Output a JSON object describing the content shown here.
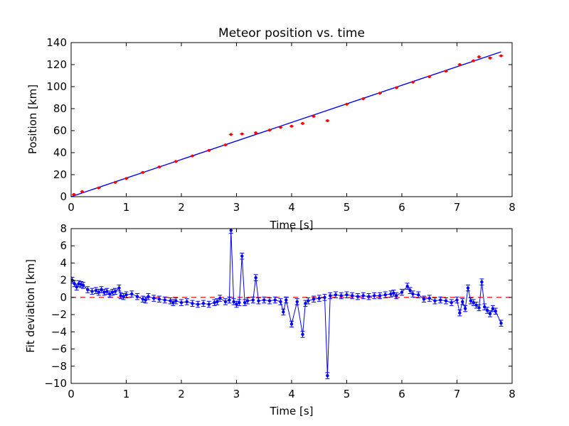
{
  "colors": {
    "fit_line": "#0000ff",
    "data_points": "#ff0000",
    "deviation": "#0000ff",
    "zero_line": "#ff0000",
    "axes": "#000000"
  },
  "chart_data": [
    {
      "type": "scatter",
      "title": "Meteor position vs. time",
      "xlabel": "Time [s]",
      "ylabel": "Position [km]",
      "xlim": [
        0,
        8
      ],
      "ylim": [
        0,
        140
      ],
      "xticks": [
        "0",
        "1",
        "2",
        "3",
        "4",
        "5",
        "6",
        "7",
        "8"
      ],
      "yticks": [
        "0",
        "20",
        "40",
        "60",
        "80",
        "100",
        "120",
        "140"
      ],
      "grid": false,
      "series": [
        {
          "role": "fit",
          "style": "line",
          "color": "#0000ff",
          "x": [
            0,
            7.8
          ],
          "y": [
            0,
            131.6
          ]
        },
        {
          "role": "measurements",
          "style": "points-with-errorbars",
          "color": "#ff0000",
          "x": [
            0.05,
            0.2,
            0.5,
            0.8,
            1.0,
            1.3,
            1.6,
            1.9,
            2.2,
            2.5,
            2.8,
            2.9,
            3.1,
            3.35,
            3.6,
            3.8,
            4.0,
            4.2,
            4.4,
            4.65,
            5.0,
            5.3,
            5.6,
            5.9,
            6.2,
            6.5,
            6.8,
            7.05,
            7.3,
            7.4,
            7.6,
            7.8
          ],
          "y": [
            2,
            4.5,
            8,
            13,
            16.5,
            22,
            27,
            32,
            37,
            42,
            47,
            56.5,
            57,
            58,
            60.5,
            63,
            64,
            66.5,
            73,
            69,
            84,
            89,
            94,
            99,
            104,
            109,
            114,
            120,
            123.5,
            127,
            126,
            128
          ]
        }
      ]
    },
    {
      "type": "line",
      "title": "",
      "xlabel": "Time [s]",
      "ylabel": "Fit deviation [km]",
      "xlim": [
        0,
        8
      ],
      "ylim": [
        -10,
        8
      ],
      "xticks": [
        "0",
        "1",
        "2",
        "3",
        "4",
        "5",
        "6",
        "7",
        "8"
      ],
      "yticks": [
        "8",
        "6",
        "4",
        "2",
        "0",
        "−2",
        "−4",
        "−6",
        "−8",
        "−10"
      ],
      "grid": false,
      "zero_line": true,
      "series": [
        {
          "role": "deviation",
          "style": "line-markers-errorbars",
          "color": "#0000ff",
          "x": [
            0.02,
            0.06,
            0.1,
            0.14,
            0.18,
            0.22,
            0.3,
            0.38,
            0.45,
            0.5,
            0.55,
            0.6,
            0.65,
            0.7,
            0.75,
            0.8,
            0.87,
            0.9,
            0.95,
            1.0,
            1.1,
            1.2,
            1.3,
            1.35,
            1.4,
            1.5,
            1.6,
            1.7,
            1.8,
            1.85,
            1.9,
            2.0,
            2.1,
            2.2,
            2.3,
            2.4,
            2.5,
            2.6,
            2.65,
            2.7,
            2.8,
            2.87,
            2.9,
            2.95,
            3.0,
            3.05,
            3.1,
            3.15,
            3.2,
            3.3,
            3.35,
            3.4,
            3.5,
            3.6,
            3.7,
            3.8,
            3.85,
            3.9,
            4.0,
            4.1,
            4.2,
            4.25,
            4.3,
            4.4,
            4.5,
            4.6,
            4.65,
            4.7,
            4.8,
            4.9,
            5.0,
            5.1,
            5.2,
            5.3,
            5.4,
            5.5,
            5.6,
            5.7,
            5.8,
            5.85,
            5.9,
            6.0,
            6.1,
            6.15,
            6.2,
            6.3,
            6.4,
            6.5,
            6.6,
            6.7,
            6.8,
            6.9,
            7.0,
            7.05,
            7.1,
            7.15,
            7.2,
            7.25,
            7.3,
            7.35,
            7.4,
            7.45,
            7.5,
            7.55,
            7.6,
            7.65,
            7.7,
            7.8
          ],
          "y": [
            2.0,
            1.6,
            1.2,
            1.6,
            1.5,
            1.4,
            0.9,
            0.7,
            0.8,
            0.6,
            0.9,
            0.6,
            0.7,
            0.4,
            0.6,
            0.7,
            1.1,
            0.2,
            0.1,
            0.3,
            0.4,
            0.1,
            -0.2,
            -0.3,
            0.1,
            -0.1,
            -0.2,
            -0.3,
            -0.4,
            -0.6,
            -0.4,
            -0.6,
            -0.5,
            -0.7,
            -0.8,
            -0.7,
            -0.8,
            -0.6,
            -0.5,
            -0.1,
            -0.5,
            -0.3,
            7.8,
            -0.5,
            -0.8,
            -0.6,
            4.8,
            -0.6,
            -0.4,
            -0.3,
            2.3,
            -0.4,
            -0.3,
            -0.4,
            -0.3,
            -0.5,
            -1.7,
            -0.3,
            -3.1,
            -0.5,
            -4.3,
            -0.7,
            -0.4,
            -0.2,
            -0.1,
            0.0,
            -9.1,
            0.2,
            0.3,
            0.2,
            0.3,
            0.2,
            0.1,
            0.2,
            0.1,
            0.2,
            0.2,
            0.3,
            0.4,
            0.5,
            0.2,
            0.6,
            1.3,
            0.8,
            0.4,
            0.3,
            -0.2,
            -0.1,
            -0.4,
            -0.3,
            -0.4,
            -0.6,
            -0.3,
            -1.8,
            -0.5,
            -1.3,
            1.1,
            -0.4,
            -0.6,
            -0.9,
            -1.2,
            1.8,
            -1.1,
            -1.5,
            -1.9,
            -1.3,
            -1.6,
            -3.0
          ]
        }
      ]
    }
  ]
}
